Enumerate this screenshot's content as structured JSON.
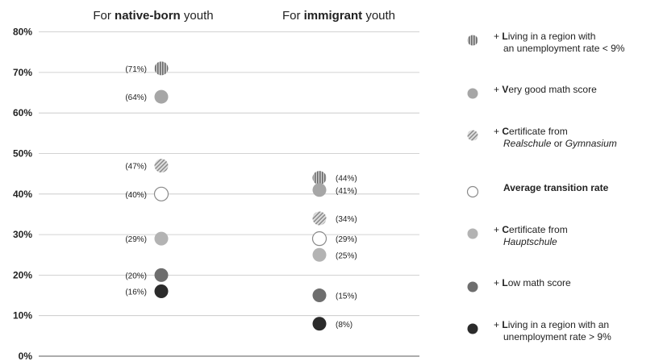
{
  "chart_data": {
    "type": "scatter",
    "title": "",
    "xlabel": "",
    "ylabel": "",
    "ylim": [
      0,
      80
    ],
    "yticks": [
      "0%",
      "10%",
      "20%",
      "30%",
      "40%",
      "50%",
      "60%",
      "70%",
      "80%"
    ],
    "grid": true,
    "legend_position": "right",
    "groups": [
      {
        "title_prefix": "For ",
        "title_bold": "native-born",
        "title_suffix": " youth",
        "label_side": "left",
        "points": [
          {
            "series": "region_low",
            "value": 71,
            "label": "(71%)"
          },
          {
            "series": "math_good",
            "value": 64,
            "label": "(64%)"
          },
          {
            "series": "cert_real",
            "value": 47,
            "label": "(47%)"
          },
          {
            "series": "average",
            "value": 40,
            "label": "(40%)"
          },
          {
            "series": "cert_haupt",
            "value": 29,
            "label": "(29%)"
          },
          {
            "series": "math_low",
            "value": 20,
            "label": "(20%)"
          },
          {
            "series": "region_high",
            "value": 16,
            "label": "(16%)"
          }
        ]
      },
      {
        "title_prefix": "For ",
        "title_bold": "immigrant",
        "title_suffix": " youth",
        "label_side": "right",
        "points": [
          {
            "series": "region_low",
            "value": 44,
            "label": "(44%)"
          },
          {
            "series": "math_good",
            "value": 41,
            "label": "(41%)"
          },
          {
            "series": "cert_real",
            "value": 34,
            "label": "(34%)"
          },
          {
            "series": "average",
            "value": 29,
            "label": "(29%)"
          },
          {
            "series": "cert_haupt",
            "value": 25,
            "label": "(25%)"
          },
          {
            "series": "math_low",
            "value": 15,
            "label": "(15%)"
          },
          {
            "series": "region_high",
            "value": 8,
            "label": "(8%)"
          }
        ]
      }
    ],
    "series": [
      {
        "id": "region_low",
        "color": "#9a9a9a",
        "pattern": "vertical-stripes",
        "legend": [
          [
            {
              "t": "+ ",
              "s": "n"
            },
            {
              "t": "L",
              "s": "b"
            },
            {
              "t": "iving in a region with",
              "s": "n"
            }
          ],
          [
            {
              "t": "an unemployment rate < 9%",
              "s": "n"
            }
          ]
        ]
      },
      {
        "id": "math_good",
        "color": "#a6a6a6",
        "pattern": "solid",
        "legend": [
          [
            {
              "t": "+ ",
              "s": "n"
            },
            {
              "t": "V",
              "s": "b"
            },
            {
              "t": "ery good math score",
              "s": "n"
            }
          ]
        ]
      },
      {
        "id": "cert_real",
        "color": "#a8a8a8",
        "pattern": "diagonal-stripes",
        "legend": [
          [
            {
              "t": "+ ",
              "s": "n"
            },
            {
              "t": "C",
              "s": "b"
            },
            {
              "t": "ertificate from",
              "s": "n"
            }
          ],
          [
            {
              "t": "Realschule",
              "s": "i"
            },
            {
              "t": " or ",
              "s": "n"
            },
            {
              "t": "Gymnasium",
              "s": "i"
            }
          ]
        ]
      },
      {
        "id": "average",
        "color": "#ffffff",
        "pattern": "hollow",
        "legend": [
          [
            {
              "t": "Average transition rate",
              "s": "b"
            }
          ]
        ]
      },
      {
        "id": "cert_haupt",
        "color": "#b3b3b3",
        "pattern": "solid",
        "legend": [
          [
            {
              "t": "+ ",
              "s": "n"
            },
            {
              "t": "C",
              "s": "b"
            },
            {
              "t": "ertificate from",
              "s": "n"
            }
          ],
          [
            {
              "t": "Hauptschule",
              "s": "i"
            }
          ]
        ]
      },
      {
        "id": "math_low",
        "color": "#6e6e6e",
        "pattern": "solid",
        "legend": [
          [
            {
              "t": "+ ",
              "s": "n"
            },
            {
              "t": "L",
              "s": "b"
            },
            {
              "t": "ow math score",
              "s": "n"
            }
          ]
        ]
      },
      {
        "id": "region_high",
        "color": "#2b2b2b",
        "pattern": "solid",
        "legend": [
          [
            {
              "t": "+ ",
              "s": "n"
            },
            {
              "t": "L",
              "s": "b"
            },
            {
              "t": "iving in a region with an",
              "s": "n"
            }
          ],
          [
            {
              "t": "unemployment rate > 9%",
              "s": "n"
            }
          ]
        ]
      }
    ]
  }
}
